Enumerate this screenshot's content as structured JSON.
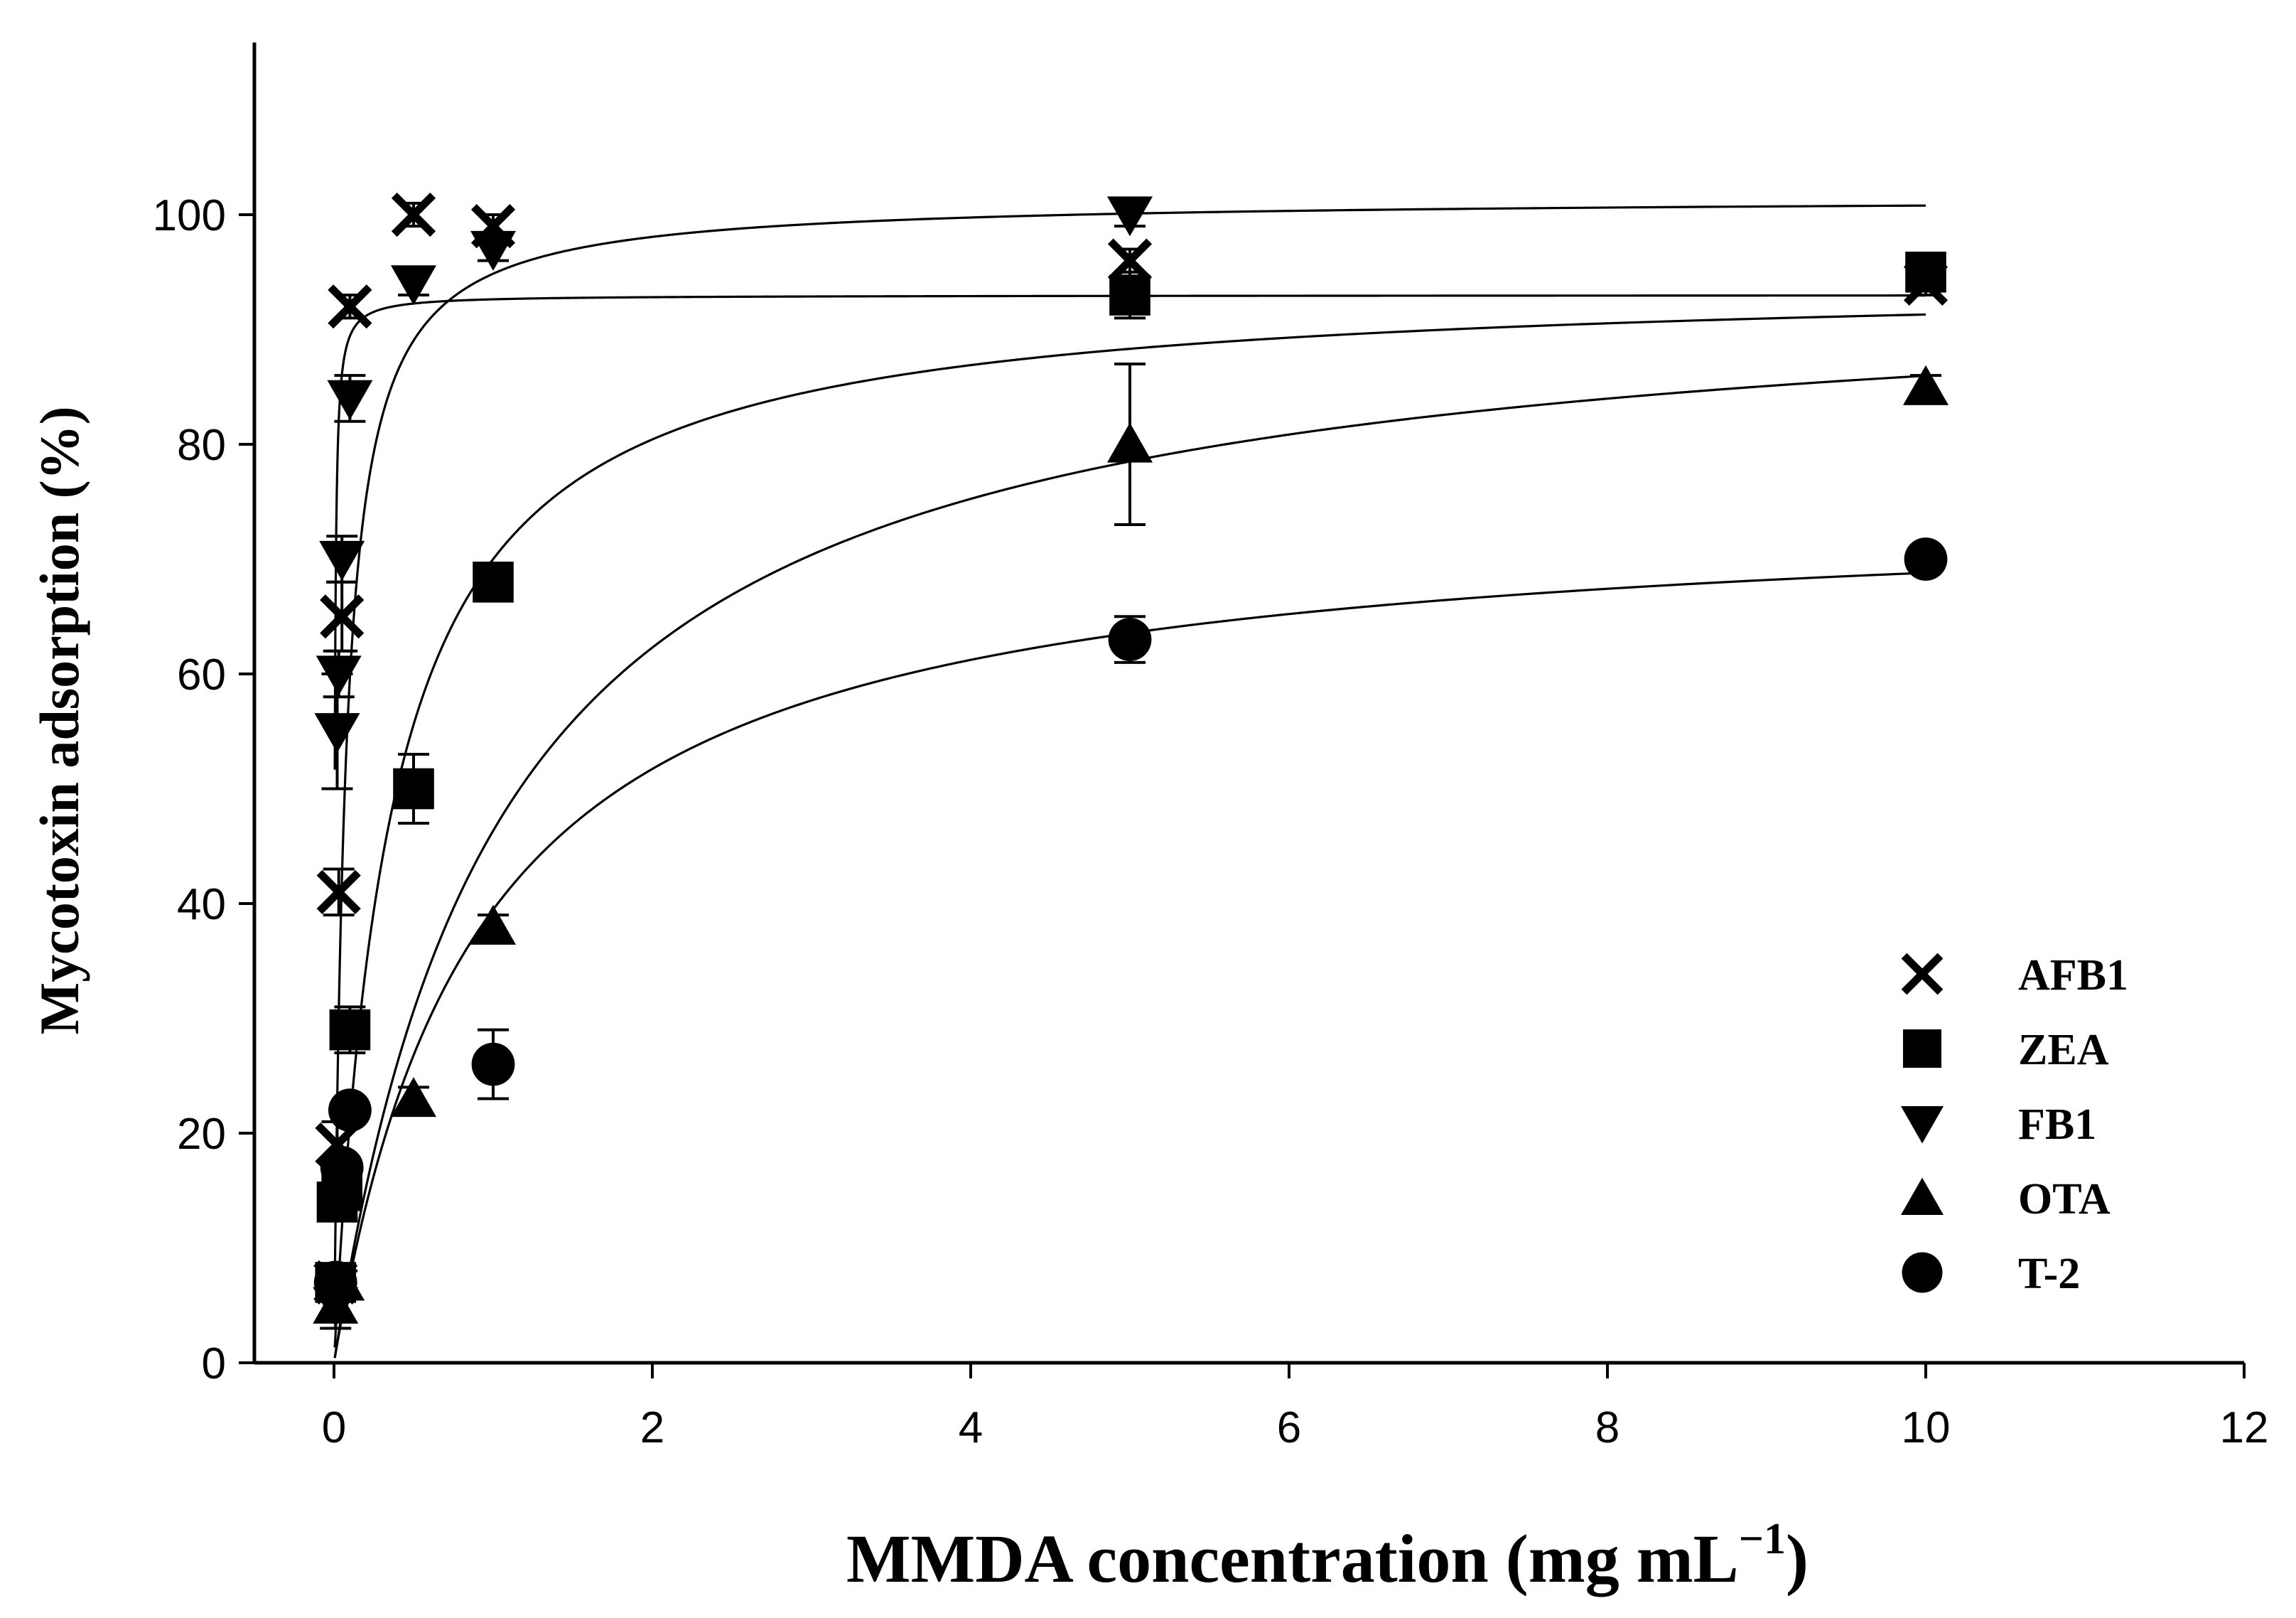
{
  "chart_data": {
    "type": "scatter",
    "title": "",
    "xlabel": "MMDA concentration  (mg mL",
    "xlabel_sup": "−1",
    "xlabel_close": ")",
    "ylabel": "Mycotoxin adsorption (%)",
    "xlim": [
      -0.5,
      12
    ],
    "ylim": [
      0,
      115
    ],
    "xticks": [
      0,
      2,
      4,
      6,
      8,
      10,
      12
    ],
    "yticks": [
      0,
      20,
      40,
      60,
      80,
      100
    ],
    "xtick_labels": [
      "0",
      "2",
      "4",
      "6",
      "8",
      "10",
      "12"
    ],
    "ytick_labels": [
      "0",
      "20",
      "40",
      "60",
      "80",
      "100"
    ],
    "grid": false,
    "legend_position": "bottom-right",
    "series": [
      {
        "name": "AFB1",
        "marker": "x",
        "points": [
          {
            "x": 0.01,
            "y": 7,
            "err": 1
          },
          {
            "x": 0.02,
            "y": 19,
            "err": 2
          },
          {
            "x": 0.03,
            "y": 41,
            "err": 2
          },
          {
            "x": 0.05,
            "y": 65,
            "err": 3
          },
          {
            "x": 0.1,
            "y": 92,
            "err": 1
          },
          {
            "x": 0.5,
            "y": 100,
            "err": 1
          },
          {
            "x": 1,
            "y": 99,
            "err": 1
          },
          {
            "x": 5,
            "y": 96,
            "err": 1
          },
          {
            "x": 10,
            "y": 94,
            "err": 1
          }
        ],
        "fit": {
          "model": "langmuir",
          "qmax": 93,
          "K": 0.004
        }
      },
      {
        "name": "ZEA",
        "marker": "square",
        "points": [
          {
            "x": 0.01,
            "y": 7,
            "err": 1
          },
          {
            "x": 0.02,
            "y": 14,
            "err": 1
          },
          {
            "x": 0.05,
            "y": 15,
            "err": 1
          },
          {
            "x": 0.1,
            "y": 29,
            "err": 2
          },
          {
            "x": 0.5,
            "y": 50,
            "err": 3
          },
          {
            "x": 1,
            "y": 68,
            "err": 1
          },
          {
            "x": 5,
            "y": 93,
            "err": 2
          },
          {
            "x": 10,
            "y": 95,
            "err": 1
          }
        ],
        "fit": {
          "model": "langmuir",
          "qmax": 94.5,
          "K": 0.35
        }
      },
      {
        "name": "FB1",
        "marker": "triangle-down",
        "points": [
          {
            "x": 0.01,
            "y": 5,
            "err": 2
          },
          {
            "x": 0.02,
            "y": 55,
            "err": 5
          },
          {
            "x": 0.03,
            "y": 60,
            "err": 2
          },
          {
            "x": 0.05,
            "y": 70,
            "err": 2
          },
          {
            "x": 0.1,
            "y": 84,
            "err": 2
          },
          {
            "x": 0.5,
            "y": 94,
            "err": 1
          },
          {
            "x": 1,
            "y": 97,
            "err": 1
          },
          {
            "x": 5,
            "y": 100,
            "err": 1
          }
        ],
        "fit": {
          "model": "langmuir",
          "qmax": 101.5,
          "K": 0.07
        }
      },
      {
        "name": "OTA",
        "marker": "triangle-up",
        "points": [
          {
            "x": 0.01,
            "y": 5,
            "err": 1
          },
          {
            "x": 0.05,
            "y": 7,
            "err": 1
          },
          {
            "x": 0.5,
            "y": 23,
            "err": 1
          },
          {
            "x": 1,
            "y": 38,
            "err": 1
          },
          {
            "x": 5,
            "y": 80,
            "err": 7
          },
          {
            "x": 10,
            "y": 85,
            "err": 1
          }
        ],
        "fit": {
          "model": "langmuir",
          "qmax": 95,
          "K": 1.05
        }
      },
      {
        "name": "T-2",
        "marker": "circle",
        "points": [
          {
            "x": 0.01,
            "y": 7,
            "err": 1
          },
          {
            "x": 0.05,
            "y": 17,
            "err": 1
          },
          {
            "x": 0.1,
            "y": 22,
            "err": 1
          },
          {
            "x": 1,
            "y": 26,
            "err": 3
          },
          {
            "x": 5,
            "y": 63,
            "err": 2
          },
          {
            "x": 10,
            "y": 70,
            "err": 1
          }
        ],
        "fit": {
          "model": "langmuir",
          "qmax": 75,
          "K": 0.9
        }
      }
    ]
  }
}
